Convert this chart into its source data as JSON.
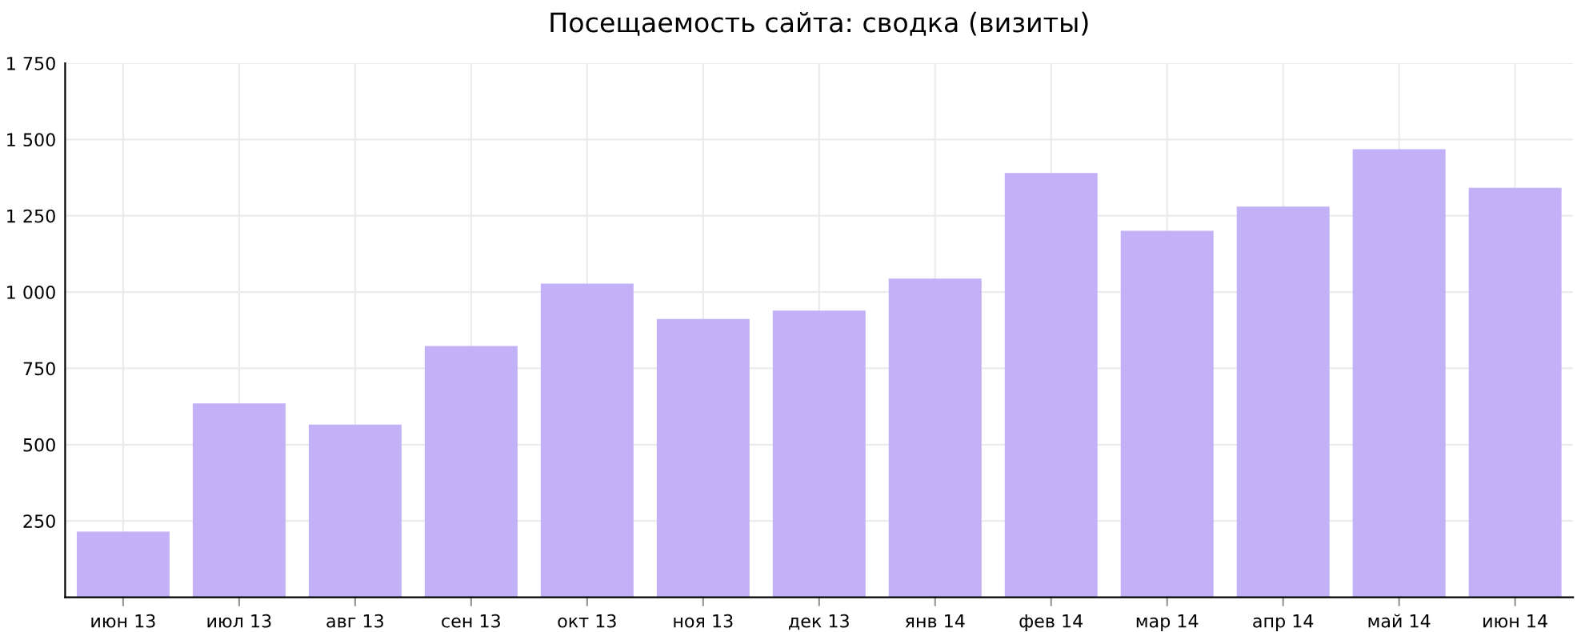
{
  "chart_data": {
    "type": "bar",
    "title": "Посещаемость сайта: сводка (визиты)",
    "categories": [
      "июн 13",
      "июл 13",
      "авг 13",
      "сен 13",
      "окт 13",
      "ноя 13",
      "дек 13",
      "янв 14",
      "фев 14",
      "мар 14",
      "апр 14",
      "май 14",
      "июн 14"
    ],
    "values": [
      215,
      635,
      566,
      823,
      1028,
      912,
      939,
      1044,
      1390,
      1201,
      1280,
      1468,
      1342
    ],
    "color": "#c2b1f7",
    "ylim": [
      0,
      1750
    ],
    "yticks": [
      {
        "value": 250,
        "label": "250"
      },
      {
        "value": 500,
        "label": "500"
      },
      {
        "value": 750,
        "label": "750"
      },
      {
        "value": 1000,
        "label": "1 000"
      },
      {
        "value": 1250,
        "label": "1 250"
      },
      {
        "value": 1500,
        "label": "1 500"
      },
      {
        "value": 1750,
        "label": "1 750"
      }
    ],
    "grid": true,
    "legend": false
  }
}
